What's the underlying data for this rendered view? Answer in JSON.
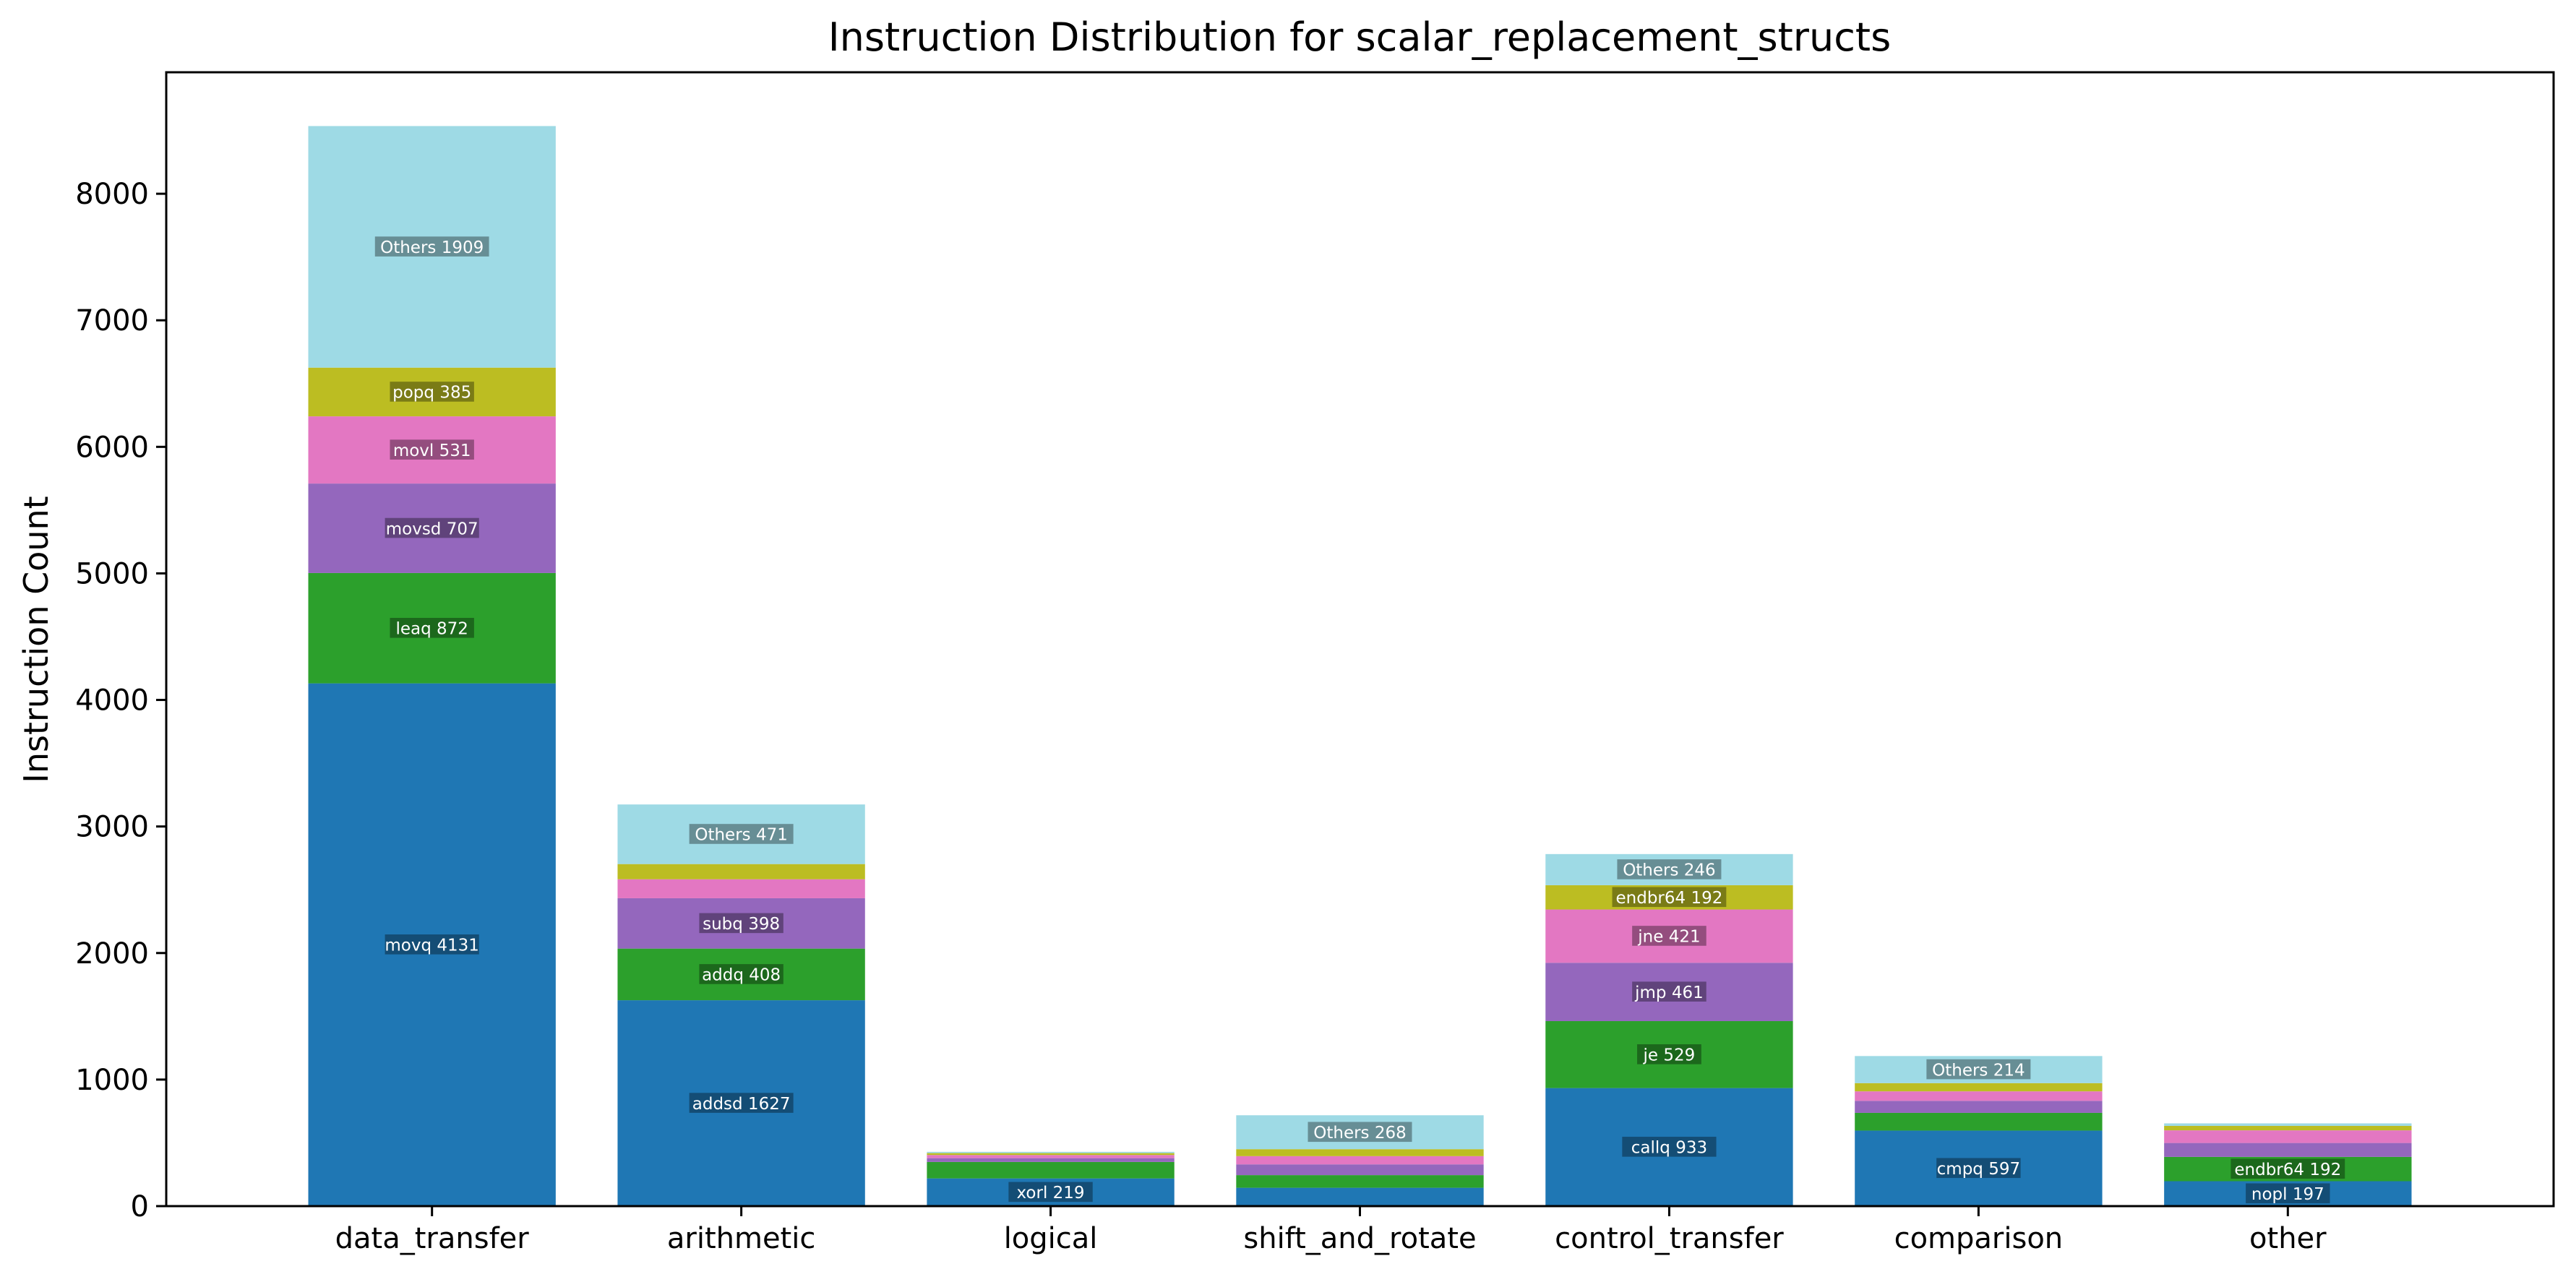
{
  "chart_data": {
    "type": "bar",
    "stacked": true,
    "title": "Instruction Distribution for scalar_replacement_structs",
    "xlabel": "",
    "ylabel": "Instruction Count",
    "ylim": [
      0,
      8960
    ],
    "yticks": [
      0,
      1000,
      2000,
      3000,
      4000,
      5000,
      6000,
      7000,
      8000
    ],
    "grid": false,
    "categories": [
      "data_transfer",
      "arithmetic",
      "logical",
      "shift_and_rotate",
      "control_transfer",
      "comparison",
      "other"
    ],
    "colors": [
      "#1f77b4",
      "#2ca02c",
      "#9467bd",
      "#e377c2",
      "#bcbd22",
      "#9edae5"
    ],
    "stacks": [
      {
        "category": "data_transfer",
        "segments": [
          {
            "label": "movq",
            "value": 4131
          },
          {
            "label": "leaq",
            "value": 872
          },
          {
            "label": "movsd",
            "value": 707
          },
          {
            "label": "movl",
            "value": 531
          },
          {
            "label": "popq",
            "value": 385
          },
          {
            "label": "Others",
            "value": 1909
          }
        ]
      },
      {
        "category": "arithmetic",
        "segments": [
          {
            "label": "addsd",
            "value": 1627
          },
          {
            "label": "addq",
            "value": 408
          },
          {
            "label": "subq",
            "value": 398
          },
          {
            "label": "",
            "value": 150
          },
          {
            "label": "",
            "value": 120
          },
          {
            "label": "Others",
            "value": 471
          }
        ]
      },
      {
        "category": "logical",
        "segments": [
          {
            "label": "xorl",
            "value": 219
          },
          {
            "label": "",
            "value": 130
          },
          {
            "label": "",
            "value": 30
          },
          {
            "label": "",
            "value": 25
          },
          {
            "label": "",
            "value": 15
          },
          {
            "label": "",
            "value": 10
          }
        ]
      },
      {
        "category": "shift_and_rotate",
        "segments": [
          {
            "label": "",
            "value": 145
          },
          {
            "label": "",
            "value": 100
          },
          {
            "label": "",
            "value": 85
          },
          {
            "label": "",
            "value": 65
          },
          {
            "label": "",
            "value": 55
          },
          {
            "label": "Others",
            "value": 268
          }
        ]
      },
      {
        "category": "control_transfer",
        "segments": [
          {
            "label": "callq",
            "value": 933
          },
          {
            "label": "je",
            "value": 529
          },
          {
            "label": "jmp",
            "value": 461
          },
          {
            "label": "jne",
            "value": 421
          },
          {
            "label": "endbr64",
            "value": 192
          },
          {
            "label": "Others",
            "value": 246
          }
        ]
      },
      {
        "category": "comparison",
        "segments": [
          {
            "label": "cmpq",
            "value": 597
          },
          {
            "label": "",
            "value": 140
          },
          {
            "label": "",
            "value": 95
          },
          {
            "label": "",
            "value": 75
          },
          {
            "label": "",
            "value": 65
          },
          {
            "label": "Others",
            "value": 214
          }
        ]
      },
      {
        "category": "other",
        "segments": [
          {
            "label": "nopl",
            "value": 197
          },
          {
            "label": "endbr64",
            "value": 192
          },
          {
            "label": "",
            "value": 110
          },
          {
            "label": "",
            "value": 100
          },
          {
            "label": "",
            "value": 35
          },
          {
            "label": "",
            "value": 20
          }
        ]
      }
    ]
  }
}
